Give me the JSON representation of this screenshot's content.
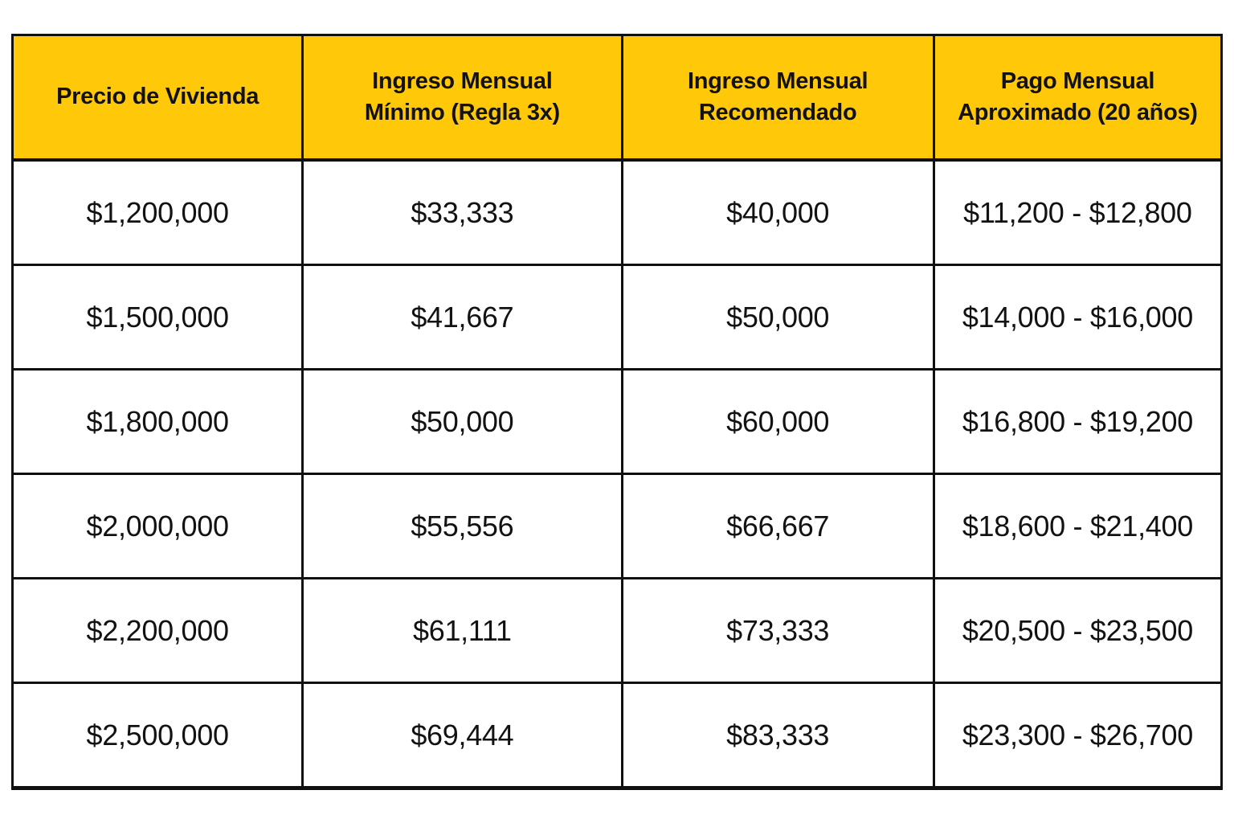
{
  "page": {
    "background": "#ffffff"
  },
  "table": {
    "header_bg": "#FFC90A",
    "border_color": "#101010",
    "text_color": "#121212",
    "headers": [
      "Precio de Vivienda",
      "Ingreso Mensual\nMínimo (Regla 3x)",
      "Ingreso Mensual\nRecomendado",
      "Pago Mensual\nAproximado (20 años)"
    ],
    "rows": [
      [
        "$1,200,000",
        "$33,333",
        "$40,000",
        "$11,200 - $12,800"
      ],
      [
        "$1,500,000",
        "$41,667",
        "$50,000",
        "$14,000 - $16,000"
      ],
      [
        "$1,800,000",
        "$50,000",
        "$60,000",
        "$16,800 - $19,200"
      ],
      [
        "$2,000,000",
        "$55,556",
        "$66,667",
        "$18,600 - $21,400"
      ],
      [
        "$2,200,000",
        "$61,111",
        "$73,333",
        "$20,500 - $23,500"
      ],
      [
        "$2,500,000",
        "$69,444",
        "$83,333",
        "$23,300 - $26,700"
      ]
    ]
  },
  "chart_data": {
    "type": "table",
    "title": "",
    "columns": [
      "Precio de Vivienda",
      "Ingreso Mensual Mínimo (Regla 3x)",
      "Ingreso Mensual Recomendado",
      "Pago Mensual Aproximado (20 años)"
    ],
    "rows": [
      [
        "$1,200,000",
        "$33,333",
        "$40,000",
        "$11,200 - $12,800"
      ],
      [
        "$1,500,000",
        "$41,667",
        "$50,000",
        "$14,000 - $16,000"
      ],
      [
        "$1,800,000",
        "$50,000",
        "$60,000",
        "$16,800 - $19,200"
      ],
      [
        "$2,000,000",
        "$55,556",
        "$66,667",
        "$18,600 - $21,400"
      ],
      [
        "$2,200,000",
        "$61,111",
        "$73,333",
        "$20,500 - $23,500"
      ],
      [
        "$2,500,000",
        "$69,444",
        "$83,333",
        "$23,300 - $26,700"
      ]
    ],
    "layout": {
      "header_background": "#FFC90A",
      "grid": true,
      "cell_alignment": "center"
    }
  }
}
